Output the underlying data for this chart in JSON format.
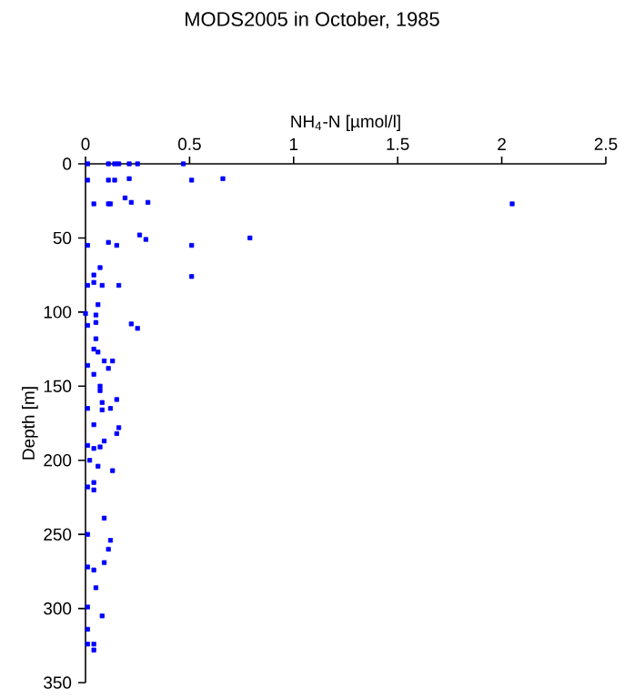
{
  "chart_data": {
    "type": "scatter",
    "title": "MODS2005 in October, 1985",
    "xlabel": "NH$_{4}$-N [µmol/l]",
    "ylabel": "Depth [m]",
    "x": [
      0.01,
      0.11,
      0.14,
      0.16,
      0.21,
      0.25,
      0.47,
      0.01,
      0.11,
      0.14,
      0.21,
      0.51,
      0.66,
      0.04,
      0.11,
      0.12,
      0.19,
      0.22,
      0.3,
      2.05,
      0.26,
      0.29,
      0.01,
      0.11,
      0.15,
      0.51,
      0.79,
      0.07,
      0.04,
      0.04,
      0.01,
      0.08,
      0.16,
      0.51,
      0.06,
      0.05,
      0,
      0.01,
      0.05,
      0.22,
      0.25,
      0.05,
      0.04,
      0.06,
      0.01,
      0.09,
      0.13,
      0.11,
      0.04,
      0.07,
      0.07,
      0.15,
      0.08,
      0.01,
      0.12,
      0.08,
      0.04,
      0.16,
      0.15,
      0.09,
      0.01,
      0.04,
      0.07,
      0.02,
      0.06,
      0.13,
      0.04,
      0.01,
      0.04,
      0.09,
      0.01,
      0.12,
      0.11,
      0.09,
      0.01,
      0.04,
      0.05,
      0.01,
      0.08,
      0.01,
      0.01,
      0.04,
      0.04
    ],
    "values": [
      0,
      0,
      0,
      0,
      0,
      0,
      0,
      11,
      11,
      11,
      10,
      11,
      10,
      27,
      27,
      27,
      23,
      26,
      26,
      27,
      48,
      51,
      55,
      53,
      55,
      55,
      50,
      70,
      75,
      80,
      82,
      82,
      82,
      76,
      95,
      102,
      101,
      109,
      107,
      108,
      111,
      118,
      125,
      127,
      136,
      133,
      133,
      138,
      142,
      150,
      153,
      159,
      161,
      165,
      165,
      166,
      176,
      178,
      182,
      187,
      190,
      192,
      191,
      200,
      204,
      207,
      215,
      218,
      220,
      239,
      250,
      254,
      260,
      269,
      272,
      274,
      286,
      299,
      305,
      314,
      324,
      324,
      328
    ],
    "color": "#0000ff",
    "marker": "square",
    "xlim": [
      0,
      2.5
    ],
    "xticks": [
      0,
      0.5,
      1,
      1.5,
      2,
      2.5
    ],
    "ylim": [
      350,
      0
    ],
    "yticks": [
      0,
      50,
      100,
      150,
      200,
      250,
      300,
      350
    ]
  }
}
